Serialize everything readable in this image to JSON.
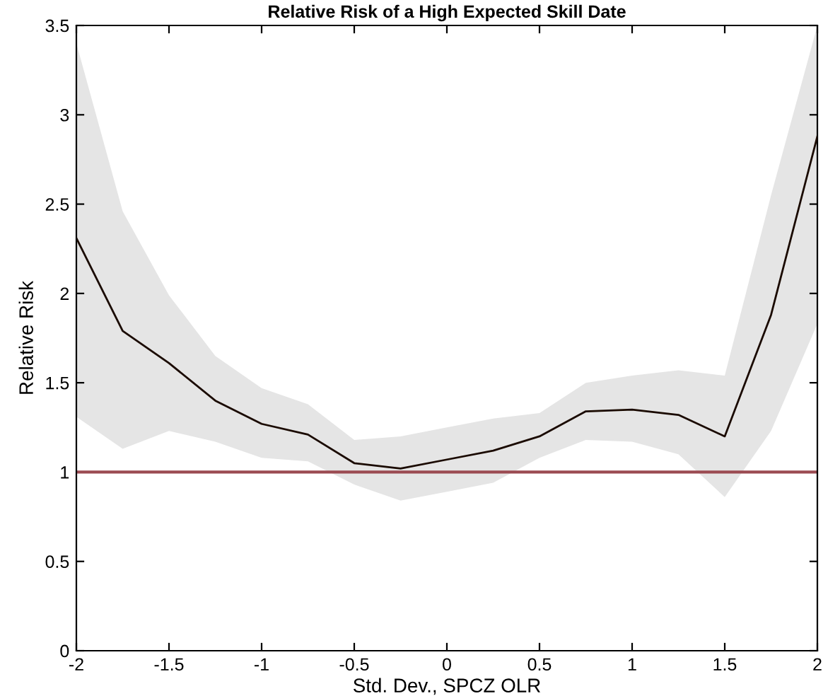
{
  "chart_data": {
    "type": "line",
    "title": "Relative Risk of a High Expected Skill Date",
    "xlabel": "Std. Dev., SPCZ OLR",
    "ylabel": "Relative Risk",
    "x": [
      -2,
      -1.75,
      -1.5,
      -1.25,
      -1,
      -0.75,
      -0.5,
      -0.25,
      0,
      0.25,
      0.5,
      0.75,
      1,
      1.25,
      1.5,
      1.75,
      2
    ],
    "series": [
      {
        "color": "#1a0a00",
        "values": [
          2.31,
          1.79,
          1.61,
          1.4,
          1.27,
          1.21,
          1.05,
          1.02,
          1.07,
          1.12,
          1.2,
          1.34,
          1.35,
          1.32,
          1.2,
          1.88,
          2.88
        ],
        "upper": [
          3.4,
          2.46,
          1.99,
          1.65,
          1.47,
          1.38,
          1.18,
          1.2,
          1.25,
          1.3,
          1.33,
          1.5,
          1.54,
          1.57,
          1.54,
          2.55,
          3.5
        ],
        "lower": [
          1.31,
          1.13,
          1.23,
          1.17,
          1.08,
          1.06,
          0.93,
          0.84,
          0.89,
          0.94,
          1.08,
          1.18,
          1.17,
          1.1,
          0.86,
          1.23,
          1.83
        ]
      }
    ],
    "ref_lines": [
      {
        "axis": "y",
        "value": 1,
        "label": null,
        "color": "#9b4b52"
      }
    ],
    "xlim": [
      -2,
      2
    ],
    "xticks": [
      -2,
      -1.5,
      -1,
      -0.5,
      0,
      0.5,
      1,
      1.5,
      2
    ],
    "ylim": [
      0,
      3.5
    ],
    "yticks": [
      0,
      0.5,
      1,
      1.5,
      2,
      2.5,
      3,
      3.5
    ],
    "grid": false,
    "legend": false,
    "marker": "none",
    "line_style": "solid"
  }
}
